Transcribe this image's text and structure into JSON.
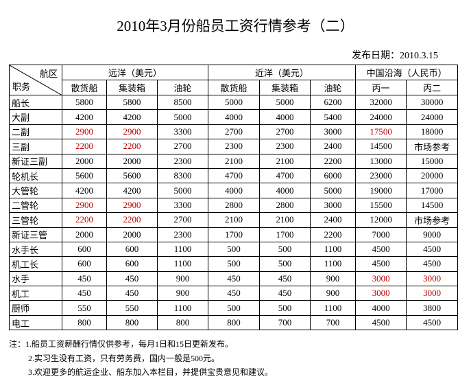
{
  "title": "2010年3月份船员工资行情参考（二）",
  "publish_date": "发布日期：2010.3.15",
  "table": {
    "corner": {
      "zone": "航区",
      "job": "职务"
    },
    "groups": [
      "远洋（美元）",
      "近洋（美元）",
      "中国沿海（人民币）"
    ],
    "subheaders": [
      "散货船",
      "集装箱",
      "油轮",
      "散货船",
      "集装箱",
      "油轮",
      "丙一",
      "丙二"
    ],
    "rows": [
      [
        "船长",
        5800,
        5800,
        8500,
        5000,
        5000,
        6200,
        32000,
        30000
      ],
      [
        "大副",
        4200,
        4200,
        5000,
        4000,
        4000,
        5400,
        24000,
        24000
      ],
      [
        "二副",
        2900,
        2900,
        3300,
        2700,
        2700,
        3000,
        17500,
        18000
      ],
      [
        "三副",
        2200,
        2200,
        2700,
        2300,
        2300,
        2400,
        14500,
        "市场参考"
      ],
      [
        "新证三副",
        2000,
        2000,
        2300,
        2100,
        2100,
        2200,
        13000,
        15000
      ],
      [
        "轮机长",
        5600,
        5600,
        8300,
        4700,
        4700,
        6000,
        23000,
        20000
      ],
      [
        "大管轮",
        4200,
        4200,
        5000,
        4000,
        4000,
        5000,
        19000,
        17000
      ],
      [
        "二管轮",
        2900,
        2900,
        3300,
        2800,
        2800,
        3000,
        15500,
        14500
      ],
      [
        "三管轮",
        2200,
        2200,
        2700,
        2100,
        2100,
        2400,
        12000,
        "市场参考"
      ],
      [
        "新证三管",
        2000,
        2000,
        2300,
        1700,
        1700,
        2200,
        7000,
        9000
      ],
      [
        "水手长",
        600,
        600,
        1100,
        500,
        500,
        1100,
        4500,
        4500
      ],
      [
        "机工长",
        600,
        600,
        1100,
        500,
        500,
        1100,
        4500,
        4500
      ],
      [
        "水手",
        450,
        450,
        900,
        450,
        450,
        900,
        3000,
        3000
      ],
      [
        "机工",
        450,
        450,
        900,
        450,
        450,
        900,
        3000,
        3000
      ],
      [
        "厨师",
        550,
        550,
        1100,
        500,
        500,
        1100,
        4000,
        3800
      ],
      [
        "电工",
        800,
        800,
        800,
        800,
        700,
        700,
        4500,
        4500
      ]
    ]
  },
  "notes": [
    "注：1.船员工资薪酬行情仅供参考，每月1日和15日更新发布。",
    "2.实习生没有工资，只有劳务费，国内一般是500元。",
    "3.欢迎更多的航运企业、船东加入本栏目，并提供宝贵意见和建议。"
  ]
}
